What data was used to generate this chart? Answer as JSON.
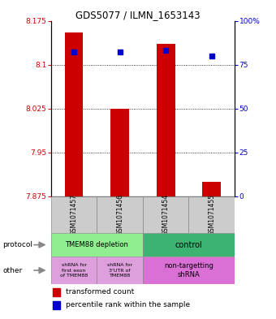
{
  "title": "GDS5077 / ILMN_1653143",
  "samples": [
    "GSM1071457",
    "GSM1071456",
    "GSM1071454",
    "GSM1071455"
  ],
  "red_values": [
    8.155,
    8.025,
    8.135,
    7.9
  ],
  "blue_values": [
    82,
    82,
    83,
    80
  ],
  "y_min": 7.875,
  "y_max": 8.175,
  "y_ticks_left": [
    7.875,
    7.95,
    8.025,
    8.1,
    8.175
  ],
  "y_ticks_right": [
    0,
    25,
    50,
    75,
    100
  ],
  "bar_color": "#CC0000",
  "dot_color": "#0000CC",
  "left_axis_color": "#CC0000",
  "right_axis_color": "#0000CC",
  "sample_bg": "#CCCCCC",
  "proto1_color": "#90EE90",
  "proto2_color": "#3CB371",
  "other1_color": "#DDA0DD",
  "other2_color": "#DA70D6",
  "border_color": "#888888",
  "bar_width": 0.4,
  "marker_size": 4
}
